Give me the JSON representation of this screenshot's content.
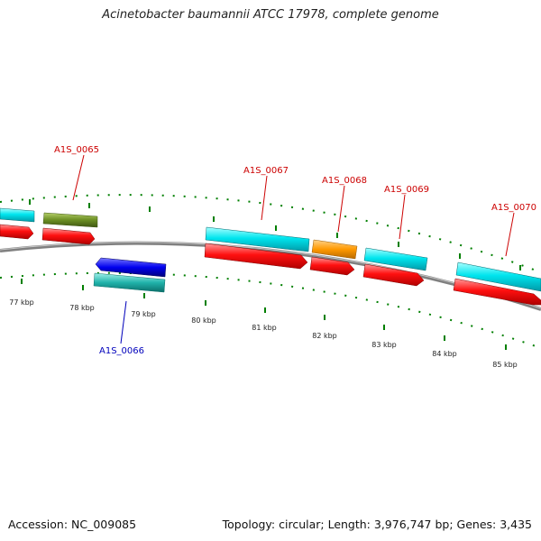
{
  "title": "Acinetobacter baumannii ATCC 17978, complete genome",
  "footer": {
    "accession": "Accession: NC_009085",
    "summary": "Topology: circular; Length: 3,976,747 bp; Genes: 3,435"
  },
  "colors": {
    "backbone": "#808080",
    "tick": "#007f00",
    "cds_cyan": "#00e5ee",
    "cds_red": "#ff0000",
    "gene_olive": "#6b8e23",
    "gene_blue": "#0000ee",
    "gene_teal": "#20b2aa",
    "gene_orange": "#ff9900",
    "label_forward": "#cc0000",
    "label_reverse": "#0000bb"
  },
  "gene_labels": [
    {
      "id": "A1S_0065",
      "strand": "forward"
    },
    {
      "id": "A1S_0066",
      "strand": "reverse"
    },
    {
      "id": "A1S_0067",
      "strand": "forward"
    },
    {
      "id": "A1S_0068",
      "strand": "forward"
    },
    {
      "id": "A1S_0069",
      "strand": "forward"
    },
    {
      "id": "A1S_0070",
      "strand": "forward"
    }
  ],
  "kbp_labels": [
    "77 kbp",
    "78 kbp",
    "79 kbp",
    "80 kbp",
    "81 kbp",
    "82 kbp",
    "83 kbp",
    "84 kbp",
    "85 kbp"
  ]
}
